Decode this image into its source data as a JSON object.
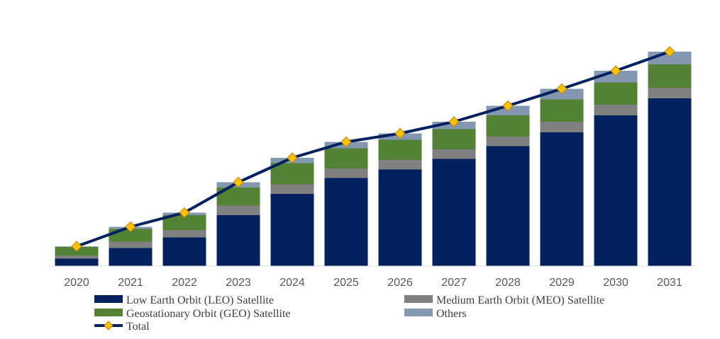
{
  "chart_data": {
    "type": "bar",
    "stacked": true,
    "title": "",
    "xlabel": "",
    "ylabel": "",
    "ylim": [
      0,
      100
    ],
    "grid": false,
    "legend_position": "bottom",
    "categories": [
      "2020",
      "2021",
      "2022",
      "2023",
      "2024",
      "2025",
      "2026",
      "2027",
      "2028",
      "2029",
      "2030",
      "2031"
    ],
    "series": [
      {
        "name": "Low Earth Orbit (LEO) Satellite",
        "color": "#002060",
        "values": [
          3.5,
          8.5,
          13.5,
          24,
          34,
          41.5,
          45.5,
          50.5,
          56.5,
          63,
          71,
          79
        ]
      },
      {
        "name": "Medium Earth Orbit (MEO) Satellite",
        "color": "#808080",
        "values": [
          1.5,
          3,
          3.5,
          4.5,
          4.5,
          4.5,
          4.5,
          4.5,
          4.5,
          5,
          5,
          5
        ]
      },
      {
        "name": "Geostationary Orbit (GEO) Satellite",
        "color": "#548235",
        "values": [
          4,
          6,
          7,
          8.5,
          10,
          9.5,
          9.5,
          9.5,
          10,
          10.5,
          10.5,
          11
        ]
      },
      {
        "name": "Others",
        "color": "#8497B0",
        "values": [
          0.3,
          1,
          1.2,
          2.5,
          2.5,
          3,
          3,
          3.5,
          4.5,
          5,
          5.5,
          6
        ]
      }
    ],
    "total": {
      "name": "Total",
      "line_color": "#002060",
      "marker_color": "#FFC000",
      "values": [
        9.3,
        18.5,
        25.2,
        39.5,
        51,
        58.5,
        62.5,
        68,
        75.5,
        83.5,
        92,
        101
      ]
    }
  }
}
